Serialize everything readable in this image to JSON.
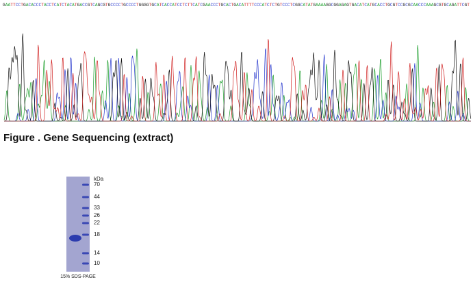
{
  "sequence": "GAATTCCTGACACCCTACCTCATCTACATGACCGTCAGCGTGCCCCTGCCCCTGGGGTGCATCACCATCCTCTTCATCGAACCCTGCACTGACATTTTCCCATCTCTGTCCCTCGGCATATGAAAAGGCGGAGAGTGACATCATGCACCTGCGTCCGCGCAACCCAAAGCGTGCAGATTCGT",
  "figure_title": "Figure . Gene Sequencing (extract)",
  "gel": {
    "unit": "kDa",
    "markers": [
      "70",
      "44",
      "33",
      "26",
      "22",
      "18",
      "14",
      "10"
    ],
    "caption": "15% SDS-PAGE"
  }
}
